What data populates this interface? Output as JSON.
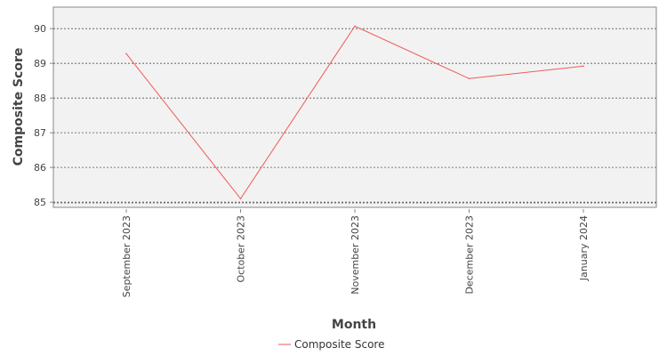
{
  "chart_data": {
    "type": "line",
    "title": "",
    "xlabel": "Month",
    "ylabel": "Composite Score",
    "categories": [
      "September 2023",
      "October 2023",
      "November 2023",
      "December 2023",
      "January 2024"
    ],
    "series": [
      {
        "name": "Composite Score",
        "values": [
          89.28,
          85.1,
          90.07,
          88.56,
          88.92
        ],
        "color": "#f05a5a"
      }
    ],
    "ylim": [
      84.85,
      90.62
    ],
    "yticks": [
      85,
      86,
      87,
      88,
      89,
      90
    ],
    "grid": true,
    "legend_position": "bottom-center",
    "plot_background": "#f2f2f2"
  }
}
